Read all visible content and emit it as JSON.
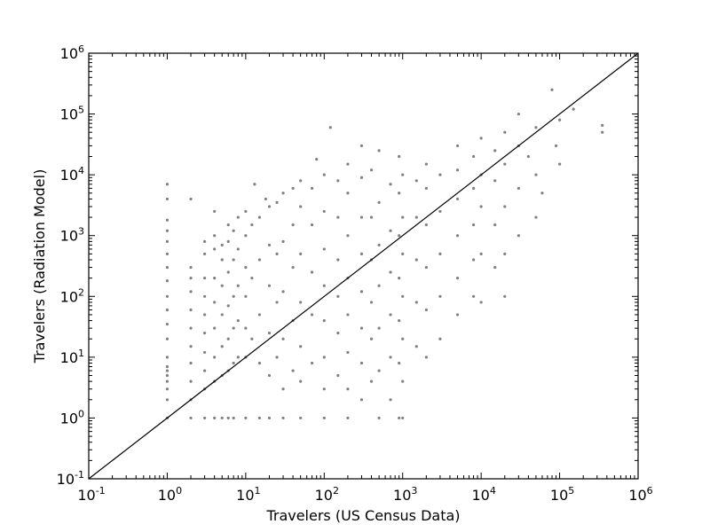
{
  "chart_data": {
    "type": "scatter",
    "title": "",
    "xlabel": "Travelers (US Census Data)",
    "ylabel": "Travelers (Radiation Model)",
    "xscale": "log",
    "yscale": "log",
    "xlim": [
      0.1,
      1000000
    ],
    "ylim": [
      0.1,
      1000000
    ],
    "x_ticks": [
      {
        "base": "10",
        "exp": "-1",
        "value": 0.1
      },
      {
        "base": "10",
        "exp": "0",
        "value": 1
      },
      {
        "base": "10",
        "exp": "1",
        "value": 10
      },
      {
        "base": "10",
        "exp": "2",
        "value": 100
      },
      {
        "base": "10",
        "exp": "3",
        "value": 1000
      },
      {
        "base": "10",
        "exp": "4",
        "value": 10000
      },
      {
        "base": "10",
        "exp": "5",
        "value": 100000
      },
      {
        "base": "10",
        "exp": "6",
        "value": 1000000
      }
    ],
    "y_ticks": [
      {
        "base": "10",
        "exp": "-1",
        "value": 0.1
      },
      {
        "base": "10",
        "exp": "0",
        "value": 1
      },
      {
        "base": "10",
        "exp": "1",
        "value": 10
      },
      {
        "base": "10",
        "exp": "2",
        "value": 100
      },
      {
        "base": "10",
        "exp": "3",
        "value": 1000
      },
      {
        "base": "10",
        "exp": "4",
        "value": 10000
      },
      {
        "base": "10",
        "exp": "5",
        "value": 100000
      },
      {
        "base": "10",
        "exp": "6",
        "value": 1000000
      }
    ],
    "grid": false,
    "legend": "none",
    "marker_color": "#808080",
    "reference_line": {
      "color": "#000000",
      "x": [
        0.1,
        1000000
      ],
      "y": [
        0.1,
        1000000
      ]
    },
    "series": [
      {
        "values": [
          {
            "x": 1,
            "y": 7
          },
          {
            "x": 1,
            "y": 6
          },
          {
            "x": 1,
            "y": 5
          },
          {
            "x": 1,
            "y": 4
          },
          {
            "x": 1,
            "y": 3
          },
          {
            "x": 1,
            "y": 2
          },
          {
            "x": 1,
            "y": 1
          },
          {
            "x": 1,
            "y": 10
          },
          {
            "x": 1,
            "y": 20
          },
          {
            "x": 1,
            "y": 35
          },
          {
            "x": 1,
            "y": 60
          },
          {
            "x": 1,
            "y": 100
          },
          {
            "x": 1,
            "y": 180
          },
          {
            "x": 1,
            "y": 300
          },
          {
            "x": 1,
            "y": 500
          },
          {
            "x": 1,
            "y": 800
          },
          {
            "x": 1,
            "y": 1200
          },
          {
            "x": 1,
            "y": 1800
          },
          {
            "x": 1,
            "y": 4000
          },
          {
            "x": 1,
            "y": 7000
          },
          {
            "x": 2,
            "y": 1
          },
          {
            "x": 2,
            "y": 2
          },
          {
            "x": 2,
            "y": 4
          },
          {
            "x": 2,
            "y": 8
          },
          {
            "x": 2,
            "y": 15
          },
          {
            "x": 2,
            "y": 30
          },
          {
            "x": 2,
            "y": 60
          },
          {
            "x": 2,
            "y": 120
          },
          {
            "x": 2,
            "y": 200
          },
          {
            "x": 2,
            "y": 300
          },
          {
            "x": 2,
            "y": 4000
          },
          {
            "x": 3,
            "y": 1
          },
          {
            "x": 3,
            "y": 3
          },
          {
            "x": 3,
            "y": 6
          },
          {
            "x": 3,
            "y": 12
          },
          {
            "x": 3,
            "y": 25
          },
          {
            "x": 3,
            "y": 50
          },
          {
            "x": 3,
            "y": 100
          },
          {
            "x": 3,
            "y": 200
          },
          {
            "x": 3,
            "y": 500
          },
          {
            "x": 3,
            "y": 800
          },
          {
            "x": 4,
            "y": 1
          },
          {
            "x": 4,
            "y": 4
          },
          {
            "x": 4,
            "y": 10
          },
          {
            "x": 4,
            "y": 30
          },
          {
            "x": 4,
            "y": 80
          },
          {
            "x": 4,
            "y": 200
          },
          {
            "x": 4,
            "y": 600
          },
          {
            "x": 4,
            "y": 1000
          },
          {
            "x": 4,
            "y": 2500
          },
          {
            "x": 5,
            "y": 1
          },
          {
            "x": 5,
            "y": 5
          },
          {
            "x": 5,
            "y": 15
          },
          {
            "x": 5,
            "y": 50
          },
          {
            "x": 5,
            "y": 150
          },
          {
            "x": 5,
            "y": 400
          },
          {
            "x": 5,
            "y": 700
          },
          {
            "x": 6,
            "y": 1
          },
          {
            "x": 6,
            "y": 6
          },
          {
            "x": 6,
            "y": 20
          },
          {
            "x": 6,
            "y": 70
          },
          {
            "x": 6,
            "y": 250
          },
          {
            "x": 6,
            "y": 800
          },
          {
            "x": 6,
            "y": 1500
          },
          {
            "x": 7,
            "y": 1
          },
          {
            "x": 7,
            "y": 8
          },
          {
            "x": 7,
            "y": 30
          },
          {
            "x": 7,
            "y": 100
          },
          {
            "x": 7,
            "y": 400
          },
          {
            "x": 7,
            "y": 1200
          },
          {
            "x": 8,
            "y": 10
          },
          {
            "x": 8,
            "y": 40
          },
          {
            "x": 8,
            "y": 150
          },
          {
            "x": 8,
            "y": 600
          },
          {
            "x": 8,
            "y": 2000
          },
          {
            "x": 10,
            "y": 1
          },
          {
            "x": 10,
            "y": 10
          },
          {
            "x": 10,
            "y": 30
          },
          {
            "x": 10,
            "y": 100
          },
          {
            "x": 10,
            "y": 300
          },
          {
            "x": 10,
            "y": 1000
          },
          {
            "x": 10,
            "y": 2500
          },
          {
            "x": 12,
            "y": 20
          },
          {
            "x": 12,
            "y": 200
          },
          {
            "x": 12,
            "y": 1500
          },
          {
            "x": 13,
            "y": 7000
          },
          {
            "x": 15,
            "y": 1
          },
          {
            "x": 15,
            "y": 8
          },
          {
            "x": 15,
            "y": 50
          },
          {
            "x": 15,
            "y": 400
          },
          {
            "x": 15,
            "y": 2000
          },
          {
            "x": 18,
            "y": 4000
          },
          {
            "x": 20,
            "y": 1
          },
          {
            "x": 20,
            "y": 5
          },
          {
            "x": 20,
            "y": 25
          },
          {
            "x": 20,
            "y": 150
          },
          {
            "x": 20,
            "y": 700
          },
          {
            "x": 20,
            "y": 3000
          },
          {
            "x": 25,
            "y": 10
          },
          {
            "x": 25,
            "y": 80
          },
          {
            "x": 25,
            "y": 500
          },
          {
            "x": 25,
            "y": 3500
          },
          {
            "x": 30,
            "y": 1
          },
          {
            "x": 30,
            "y": 3
          },
          {
            "x": 30,
            "y": 20
          },
          {
            "x": 30,
            "y": 120
          },
          {
            "x": 30,
            "y": 800
          },
          {
            "x": 30,
            "y": 5000
          },
          {
            "x": 40,
            "y": 6
          },
          {
            "x": 40,
            "y": 40
          },
          {
            "x": 40,
            "y": 300
          },
          {
            "x": 40,
            "y": 1500
          },
          {
            "x": 40,
            "y": 6000
          },
          {
            "x": 50,
            "y": 1
          },
          {
            "x": 50,
            "y": 4
          },
          {
            "x": 50,
            "y": 15
          },
          {
            "x": 50,
            "y": 80
          },
          {
            "x": 50,
            "y": 500
          },
          {
            "x": 50,
            "y": 3000
          },
          {
            "x": 50,
            "y": 8000
          },
          {
            "x": 70,
            "y": 8
          },
          {
            "x": 70,
            "y": 50
          },
          {
            "x": 70,
            "y": 250
          },
          {
            "x": 70,
            "y": 1500
          },
          {
            "x": 70,
            "y": 6000
          },
          {
            "x": 80,
            "y": 18000
          },
          {
            "x": 100,
            "y": 1
          },
          {
            "x": 100,
            "y": 3
          },
          {
            "x": 100,
            "y": 10
          },
          {
            "x": 100,
            "y": 40
          },
          {
            "x": 100,
            "y": 150
          },
          {
            "x": 100,
            "y": 600
          },
          {
            "x": 100,
            "y": 2500
          },
          {
            "x": 100,
            "y": 10000
          },
          {
            "x": 120,
            "y": 60000
          },
          {
            "x": 150,
            "y": 5
          },
          {
            "x": 150,
            "y": 25
          },
          {
            "x": 150,
            "y": 100
          },
          {
            "x": 150,
            "y": 400
          },
          {
            "x": 150,
            "y": 2000
          },
          {
            "x": 150,
            "y": 8000
          },
          {
            "x": 200,
            "y": 1
          },
          {
            "x": 200,
            "y": 3
          },
          {
            "x": 200,
            "y": 12
          },
          {
            "x": 200,
            "y": 50
          },
          {
            "x": 200,
            "y": 200
          },
          {
            "x": 200,
            "y": 1000
          },
          {
            "x": 200,
            "y": 5000
          },
          {
            "x": 200,
            "y": 15000
          },
          {
            "x": 300,
            "y": 2
          },
          {
            "x": 300,
            "y": 8
          },
          {
            "x": 300,
            "y": 30
          },
          {
            "x": 300,
            "y": 120
          },
          {
            "x": 300,
            "y": 500
          },
          {
            "x": 300,
            "y": 2000
          },
          {
            "x": 300,
            "y": 9000
          },
          {
            "x": 300,
            "y": 30000
          },
          {
            "x": 400,
            "y": 4
          },
          {
            "x": 400,
            "y": 20
          },
          {
            "x": 400,
            "y": 80
          },
          {
            "x": 400,
            "y": 400
          },
          {
            "x": 400,
            "y": 2000
          },
          {
            "x": 400,
            "y": 12000
          },
          {
            "x": 500,
            "y": 1
          },
          {
            "x": 500,
            "y": 6
          },
          {
            "x": 500,
            "y": 30
          },
          {
            "x": 500,
            "y": 150
          },
          {
            "x": 500,
            "y": 700
          },
          {
            "x": 500,
            "y": 3500
          },
          {
            "x": 500,
            "y": 25000
          },
          {
            "x": 700,
            "y": 2
          },
          {
            "x": 700,
            "y": 10
          },
          {
            "x": 700,
            "y": 50
          },
          {
            "x": 700,
            "y": 250
          },
          {
            "x": 700,
            "y": 1200
          },
          {
            "x": 700,
            "y": 7000
          },
          {
            "x": 900,
            "y": 1
          },
          {
            "x": 900,
            "y": 8
          },
          {
            "x": 900,
            "y": 40
          },
          {
            "x": 900,
            "y": 200
          },
          {
            "x": 900,
            "y": 1000
          },
          {
            "x": 900,
            "y": 5000
          },
          {
            "x": 900,
            "y": 20000
          },
          {
            "x": 1000,
            "y": 1
          },
          {
            "x": 1000,
            "y": 4
          },
          {
            "x": 1000,
            "y": 20
          },
          {
            "x": 1000,
            "y": 100
          },
          {
            "x": 1000,
            "y": 500
          },
          {
            "x": 1000,
            "y": 2000
          },
          {
            "x": 1000,
            "y": 10000
          },
          {
            "x": 1500,
            "y": 15
          },
          {
            "x": 1500,
            "y": 80
          },
          {
            "x": 1500,
            "y": 400
          },
          {
            "x": 1500,
            "y": 2000
          },
          {
            "x": 1500,
            "y": 8000
          },
          {
            "x": 2000,
            "y": 10
          },
          {
            "x": 2000,
            "y": 60
          },
          {
            "x": 2000,
            "y": 300
          },
          {
            "x": 2000,
            "y": 1500
          },
          {
            "x": 2000,
            "y": 6000
          },
          {
            "x": 2000,
            "y": 15000
          },
          {
            "x": 3000,
            "y": 20
          },
          {
            "x": 3000,
            "y": 100
          },
          {
            "x": 3000,
            "y": 500
          },
          {
            "x": 3000,
            "y": 2500
          },
          {
            "x": 3000,
            "y": 10000
          },
          {
            "x": 5000,
            "y": 50
          },
          {
            "x": 5000,
            "y": 200
          },
          {
            "x": 5000,
            "y": 1000
          },
          {
            "x": 5000,
            "y": 4000
          },
          {
            "x": 5000,
            "y": 12000
          },
          {
            "x": 5000,
            "y": 30000
          },
          {
            "x": 8000,
            "y": 100
          },
          {
            "x": 8000,
            "y": 400
          },
          {
            "x": 8000,
            "y": 1500
          },
          {
            "x": 8000,
            "y": 6000
          },
          {
            "x": 8000,
            "y": 20000
          },
          {
            "x": 10000,
            "y": 80
          },
          {
            "x": 10000,
            "y": 500
          },
          {
            "x": 10000,
            "y": 3000
          },
          {
            "x": 10000,
            "y": 10000
          },
          {
            "x": 10000,
            "y": 40000
          },
          {
            "x": 15000,
            "y": 300
          },
          {
            "x": 15000,
            "y": 1500
          },
          {
            "x": 15000,
            "y": 8000
          },
          {
            "x": 15000,
            "y": 25000
          },
          {
            "x": 20000,
            "y": 100
          },
          {
            "x": 20000,
            "y": 500
          },
          {
            "x": 20000,
            "y": 3000
          },
          {
            "x": 20000,
            "y": 15000
          },
          {
            "x": 20000,
            "y": 50000
          },
          {
            "x": 30000,
            "y": 1000
          },
          {
            "x": 30000,
            "y": 6000
          },
          {
            "x": 30000,
            "y": 30000
          },
          {
            "x": 30000,
            "y": 100000
          },
          {
            "x": 40000,
            "y": 20000
          },
          {
            "x": 50000,
            "y": 2000
          },
          {
            "x": 50000,
            "y": 10000
          },
          {
            "x": 50000,
            "y": 60000
          },
          {
            "x": 60000,
            "y": 5000
          },
          {
            "x": 80000,
            "y": 250000
          },
          {
            "x": 90000,
            "y": 30000
          },
          {
            "x": 100000,
            "y": 15000
          },
          {
            "x": 100000,
            "y": 80000
          },
          {
            "x": 150000,
            "y": 120000
          },
          {
            "x": 350000,
            "y": 50000
          },
          {
            "x": 350000,
            "y": 65000
          }
        ]
      }
    ]
  }
}
